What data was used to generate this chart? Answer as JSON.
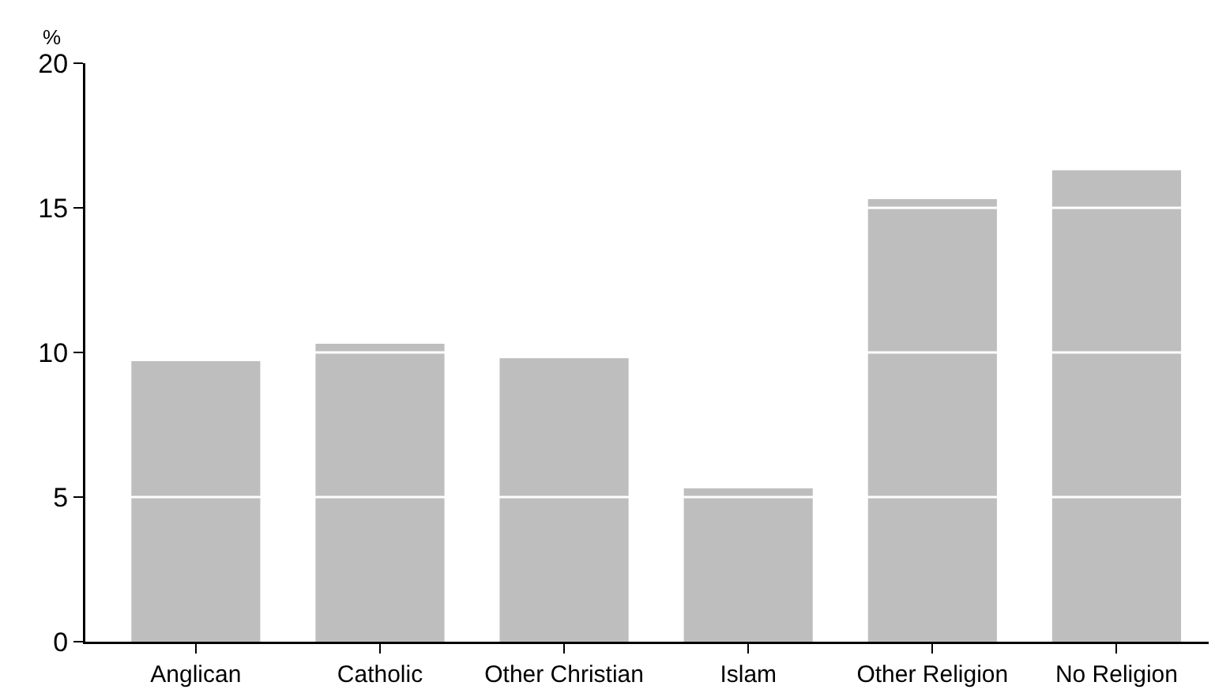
{
  "chart_data": {
    "type": "bar",
    "ylabel": "%",
    "categories": [
      "Anglican",
      "Catholic",
      "Other Christian",
      "Islam",
      "Other Religion",
      "No Religion"
    ],
    "values": [
      9.7,
      10.3,
      9.8,
      5.3,
      15.3,
      16.3
    ],
    "color": "#bebebe",
    "ylim": [
      0,
      20
    ],
    "yticks": [
      0,
      5,
      10,
      15,
      20
    ],
    "grid": "y"
  }
}
